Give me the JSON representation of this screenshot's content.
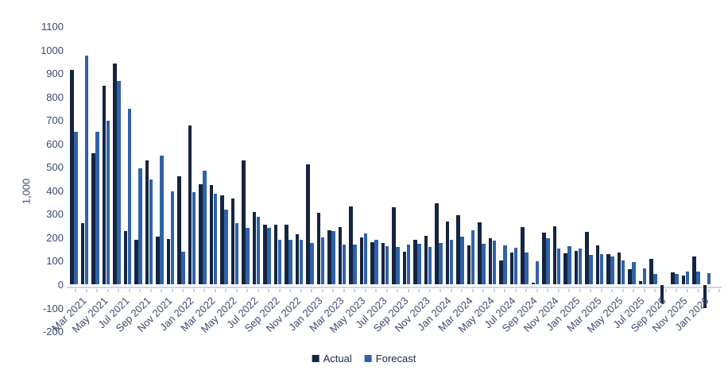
{
  "chart_data": {
    "type": "bar",
    "title": "",
    "xlabel": "",
    "ylabel": "1,000",
    "grid": "off",
    "background": "#ffffff",
    "categories": [
      "Mar 2021",
      "Apr 2021",
      "May 2021",
      "Jun 2021",
      "Jul 2021",
      "Aug 2021",
      "Sep 2021",
      "Oct 2021",
      "Nov 2021",
      "Dec 2021",
      "Jan 2022",
      "Feb 2022",
      "Mar 2022",
      "Apr 2022",
      "May 2022",
      "Jun 2022",
      "Jul 2022",
      "Aug 2022",
      "Sep 2022",
      "Oct 2022",
      "Nov 2022",
      "Dec 2022",
      "Jan 2023",
      "Feb 2023",
      "Mar 2023",
      "Apr 2023",
      "May 2023",
      "Jun 2023",
      "Jul 2023",
      "Aug 2023",
      "Sep 2023",
      "Oct 2023",
      "Nov 2023",
      "Dec 2023",
      "Jan 2024",
      "Feb 2024",
      "Mar 2024",
      "Apr 2024",
      "May 2024",
      "Jun 2024",
      "Jul 2024",
      "Aug 2024",
      "Sep 2024",
      "Oct 2024",
      "Nov 2024",
      "Dec 2024",
      "Jan 2025",
      "Feb 2025",
      "Mar 2025",
      "Apr 2025",
      "May 2025",
      "Jun 2025",
      "Jul 2025",
      "Aug 2025",
      "Sep 2025",
      "Oct 2025",
      "Nov 2025",
      "Dec 2025",
      "Jan 2026",
      "Feb 2026"
    ],
    "series": [
      {
        "name": "Actual",
        "color": "#152441",
        "values": [
          915,
          262,
          560,
          849,
          943,
          230,
          190,
          530,
          204,
          195,
          463,
          680,
          429,
          424,
          382,
          367,
          528,
          309,
          254,
          257,
          257,
          215,
          512,
          307,
          232,
          245,
          333,
          201,
          180,
          178,
          330,
          142,
          190,
          207,
          347,
          269,
          297,
          168,
          266,
          198,
          104,
          136,
          247,
          8,
          220,
          249,
          134,
          145,
          225,
          168,
          130,
          136,
          65,
          15,
          110,
          -78,
          51,
          38,
          121,
          -100
        ]
      },
      {
        "name": "Forecast",
        "color": "#2f62a8",
        "values": [
          650,
          978,
          650,
          700,
          868,
          748,
          497,
          447,
          550,
          396,
          142,
          393,
          486,
          388,
          319,
          262,
          243,
          290,
          243,
          190,
          191,
          192,
          179,
          200,
          230,
          170,
          171,
          219,
          192,
          164,
          162,
          172,
          175,
          162,
          179,
          190,
          205,
          232,
          173,
          187,
          168,
          156,
          138,
          99,
          197,
          155,
          163,
          153,
          128,
          130,
          119,
          104,
          97,
          68,
          45,
          0,
          45,
          57,
          57,
          48
        ]
      }
    ],
    "y_axis": {
      "min": -200,
      "max": 1100,
      "step": 100,
      "unit_label": "1,000",
      "tick_labels": [
        "1100",
        "1000",
        "900",
        "800",
        "700",
        "600",
        "500",
        "400",
        "300",
        "200",
        "100",
        "0",
        "-100",
        "-200"
      ]
    },
    "x_axis": {
      "label_every_n_categories": 2,
      "tick_labels": [
        "Mar 2021",
        "May 2021",
        "Jul 2021",
        "Sep 2021",
        "Nov 2021",
        "Jan 2022",
        "Mar 2022",
        "May 2022",
        "Jul 2022",
        "Sep 2022",
        "Nov 2022",
        "Jan 2023",
        "Mar 2023",
        "May 2023",
        "Jul 2023",
        "Sep 2023",
        "Nov 2023",
        "Jan 2024",
        "Mar 2024",
        "May 2024",
        "Jul 2024",
        "Sep 2024",
        "Nov 2024",
        "Jan 2025",
        "Mar 2025",
        "May 2025",
        "Jul 2025",
        "Sep 2025",
        "Nov 2025",
        "Jan 2026"
      ]
    },
    "legend": {
      "position": "bottom-center",
      "entries": [
        "Actual",
        "Forecast"
      ]
    },
    "axis_colors": {
      "axis_line": "#ccd5ee",
      "tick_mark": "#c6d0ee",
      "tick_label_text": "#3c4a6e",
      "legend_text": "#1c2745"
    }
  }
}
